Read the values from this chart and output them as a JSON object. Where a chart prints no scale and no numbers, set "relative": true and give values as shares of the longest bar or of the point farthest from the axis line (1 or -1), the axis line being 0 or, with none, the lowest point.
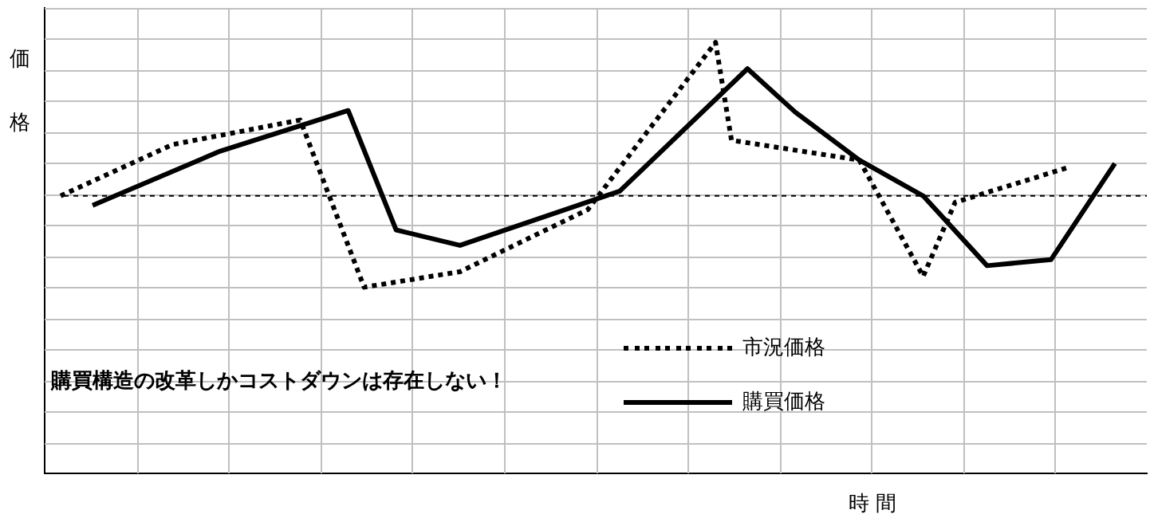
{
  "chart_data": {
    "type": "line",
    "relative": true,
    "ylabel": "価格",
    "xlabel": "時 間",
    "grid": true,
    "legend": "bottom",
    "marker": "none",
    "annotations": [
      "購買構造の改革しかコストダウンは存在しない！"
    ],
    "ref_lines": [
      {
        "axis": "y",
        "value": 0.644,
        "color": "#000000",
        "line_style": "dotted"
      }
    ],
    "categories": [
      null,
      null,
      null,
      null,
      null,
      null,
      null,
      null,
      null,
      null,
      null,
      null,
      null,
      null,
      null,
      null,
      null,
      null,
      null,
      null,
      null,
      null,
      null,
      null,
      null,
      null,
      null,
      null,
      null,
      null,
      null,
      null,
      null,
      null,
      null,
      null,
      null,
      null,
      null,
      null,
      null,
      null,
      null,
      null,
      null,
      null,
      null,
      null,
      null,
      null,
      null,
      null,
      null,
      null,
      null,
      null,
      null,
      null,
      null,
      null,
      null,
      null,
      null,
      null,
      null,
      null,
      null,
      null,
      null,
      null
    ],
    "series": [
      {
        "name": "市況価格",
        "color": "#000000",
        "line_style": "dotted",
        "values": [
          null,
          0.644,
          null,
          null,
          null,
          null,
          null,
          null,
          0.763,
          null,
          null,
          null,
          null,
          null,
          null,
          null,
          0.82,
          null,
          null,
          null,
          0.432,
          null,
          null,
          null,
          null,
          null,
          0.468,
          null,
          null,
          null,
          null,
          null,
          null,
          null,
          0.612,
          null,
          null,
          null,
          null,
          null,
          null,
          null,
          1.0,
          0.773,
          null,
          null,
          null,
          null,
          null,
          null,
          null,
          0.727,
          null,
          null,
          null,
          0.457,
          null,
          0.629,
          null,
          null,
          null,
          null,
          null,
          null,
          0.709,
          null,
          null,
          null,
          null,
          null
        ]
      },
      {
        "name": "購買価格",
        "color": "#000000",
        "line_style": "solid",
        "values": [
          null,
          null,
          null,
          0.622,
          null,
          null,
          null,
          null,
          null,
          null,
          null,
          0.748,
          null,
          null,
          null,
          null,
          null,
          null,
          null,
          0.842,
          null,
          null,
          0.565,
          null,
          null,
          null,
          0.529,
          null,
          null,
          null,
          null,
          null,
          null,
          null,
          null,
          null,
          0.655,
          null,
          null,
          null,
          null,
          null,
          null,
          null,
          0.939,
          null,
          null,
          0.838,
          null,
          null,
          null,
          0.727,
          null,
          null,
          null,
          0.644,
          null,
          null,
          null,
          0.482,
          null,
          null,
          null,
          0.496,
          null,
          null,
          null,
          0.719,
          null,
          null
        ]
      }
    ]
  }
}
